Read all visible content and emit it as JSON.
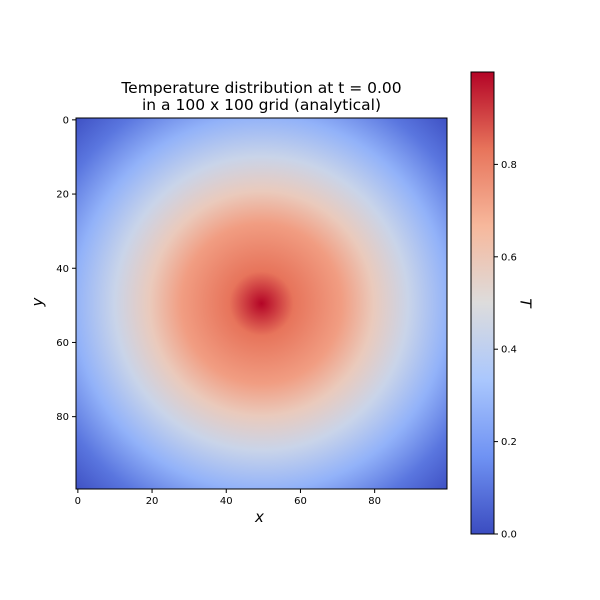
{
  "chart_data": {
    "type": "heatmap",
    "title_line1": "Temperature distribution at t = 0.00",
    "title_line2": "in a 100 x 100 grid (analytical)",
    "xlabel": "x",
    "ylabel": "y",
    "colorbar_label": "T",
    "grid_size": [
      100,
      100
    ],
    "function": "sin(pi*x/99) * sin(pi*y/99)",
    "xlim": [
      0,
      99
    ],
    "ylim": [
      0,
      99
    ],
    "y_axis_inverted": true,
    "colormap": "coolwarm",
    "colormap_stops": [
      "#3b4cc0",
      "#6f92f3",
      "#aac7fd",
      "#dddcdc",
      "#f7b89c",
      "#e7745b",
      "#b40426"
    ],
    "x_ticks": [
      "0",
      "20",
      "40",
      "60",
      "80"
    ],
    "y_ticks": [
      "0",
      "20",
      "40",
      "60",
      "80"
    ],
    "colorbar_range": [
      0.0,
      1.0
    ],
    "colorbar_ticks": [
      "0.0",
      "0.2",
      "0.4",
      "0.6",
      "0.8"
    ],
    "peak": {
      "x": 49.5,
      "y": 49.5,
      "value": 1.0
    },
    "edge_value": 0.0
  }
}
